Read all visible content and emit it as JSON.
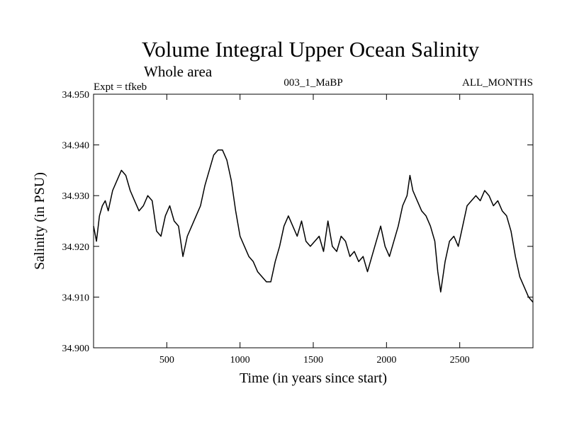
{
  "chart_data": {
    "type": "line",
    "title": "Volume Integral Upper Ocean Salinity",
    "subtitle": "Whole area",
    "header_left": "Expt = tfkeb",
    "header_center": "003_1_MaBP",
    "header_right": "ALL_MONTHS",
    "xlabel": "Time (in years since start)",
    "ylabel": "Salinity (in PSU)",
    "xlim": [
      0,
      3000
    ],
    "ylim": [
      34.9,
      34.95
    ],
    "xticks": [
      500,
      1000,
      1500,
      2000,
      2500
    ],
    "yticks": [
      "34.900",
      "34.910",
      "34.920",
      "34.930",
      "34.940",
      "34.950"
    ],
    "grid": false,
    "line_color": "#000000",
    "series": [
      {
        "x": [
          0,
          20,
          40,
          60,
          80,
          100,
          130,
          160,
          190,
          220,
          250,
          280,
          310,
          340,
          370,
          400,
          430,
          460,
          490,
          520,
          550,
          580,
          610,
          640,
          670,
          700,
          730,
          760,
          790,
          820,
          850,
          880,
          910,
          940,
          970,
          1000,
          1030,
          1060,
          1090,
          1120,
          1150,
          1180,
          1210,
          1240,
          1270,
          1300,
          1330,
          1360,
          1390,
          1420,
          1450,
          1480,
          1510,
          1540,
          1570,
          1600,
          1630,
          1660,
          1690,
          1720,
          1750,
          1780,
          1810,
          1840,
          1870,
          1900,
          1930,
          1960,
          1990,
          2020,
          2050,
          2080,
          2110,
          2140,
          2160,
          2180,
          2210,
          2240,
          2270,
          2300,
          2330,
          2350,
          2370,
          2400,
          2430,
          2460,
          2490,
          2520,
          2550,
          2580,
          2610,
          2640,
          2670,
          2700,
          2730,
          2760,
          2790,
          2820,
          2850,
          2880,
          2910,
          2940,
          2970,
          3000
        ],
        "y": [
          34.924,
          34.921,
          34.926,
          34.928,
          34.929,
          34.927,
          34.931,
          34.933,
          34.935,
          34.934,
          34.931,
          34.929,
          34.927,
          34.928,
          34.93,
          34.929,
          34.923,
          34.922,
          34.926,
          34.928,
          34.925,
          34.924,
          34.918,
          34.922,
          34.924,
          34.926,
          34.928,
          34.932,
          34.935,
          34.938,
          34.939,
          34.939,
          34.937,
          34.933,
          34.927,
          34.922,
          34.92,
          34.918,
          34.917,
          34.915,
          34.914,
          34.913,
          34.913,
          34.917,
          34.92,
          34.924,
          34.926,
          34.924,
          34.922,
          34.925,
          34.921,
          34.92,
          34.921,
          34.922,
          34.919,
          34.925,
          34.92,
          34.919,
          34.922,
          34.921,
          34.918,
          34.919,
          34.917,
          34.918,
          34.915,
          34.918,
          34.921,
          34.924,
          34.92,
          34.918,
          34.921,
          34.924,
          34.928,
          34.93,
          34.934,
          34.931,
          34.929,
          34.927,
          34.926,
          34.924,
          34.921,
          34.915,
          34.911,
          34.917,
          34.921,
          34.922,
          34.92,
          34.924,
          34.928,
          34.929,
          34.93,
          34.929,
          34.931,
          34.93,
          34.928,
          34.929,
          34.927,
          34.926,
          34.923,
          34.918,
          34.914,
          34.912,
          34.91,
          34.909
        ]
      }
    ]
  }
}
